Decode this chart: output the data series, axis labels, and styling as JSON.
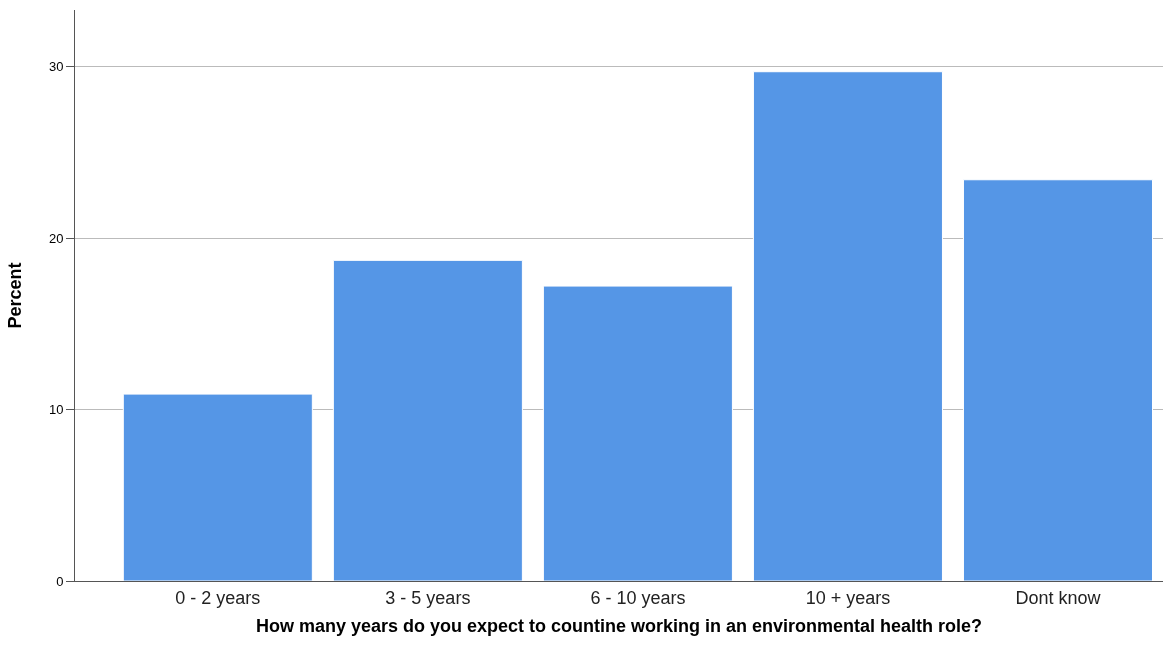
{
  "chart_data": {
    "type": "bar",
    "xlabel": "How many years do you expect to countine working in an environmental health role?",
    "ylabel": "Percent",
    "categories": [
      "0 - 2 years",
      "3 - 5 years",
      "6 - 10 years",
      "10 + years",
      "Dont know"
    ],
    "values": [
      10.9,
      18.7,
      17.2,
      29.7,
      23.4
    ],
    "color": "#5596e6",
    "ylim": [
      0,
      33.3
    ],
    "yticks": [
      0,
      10,
      20,
      30
    ],
    "grid": "y"
  }
}
